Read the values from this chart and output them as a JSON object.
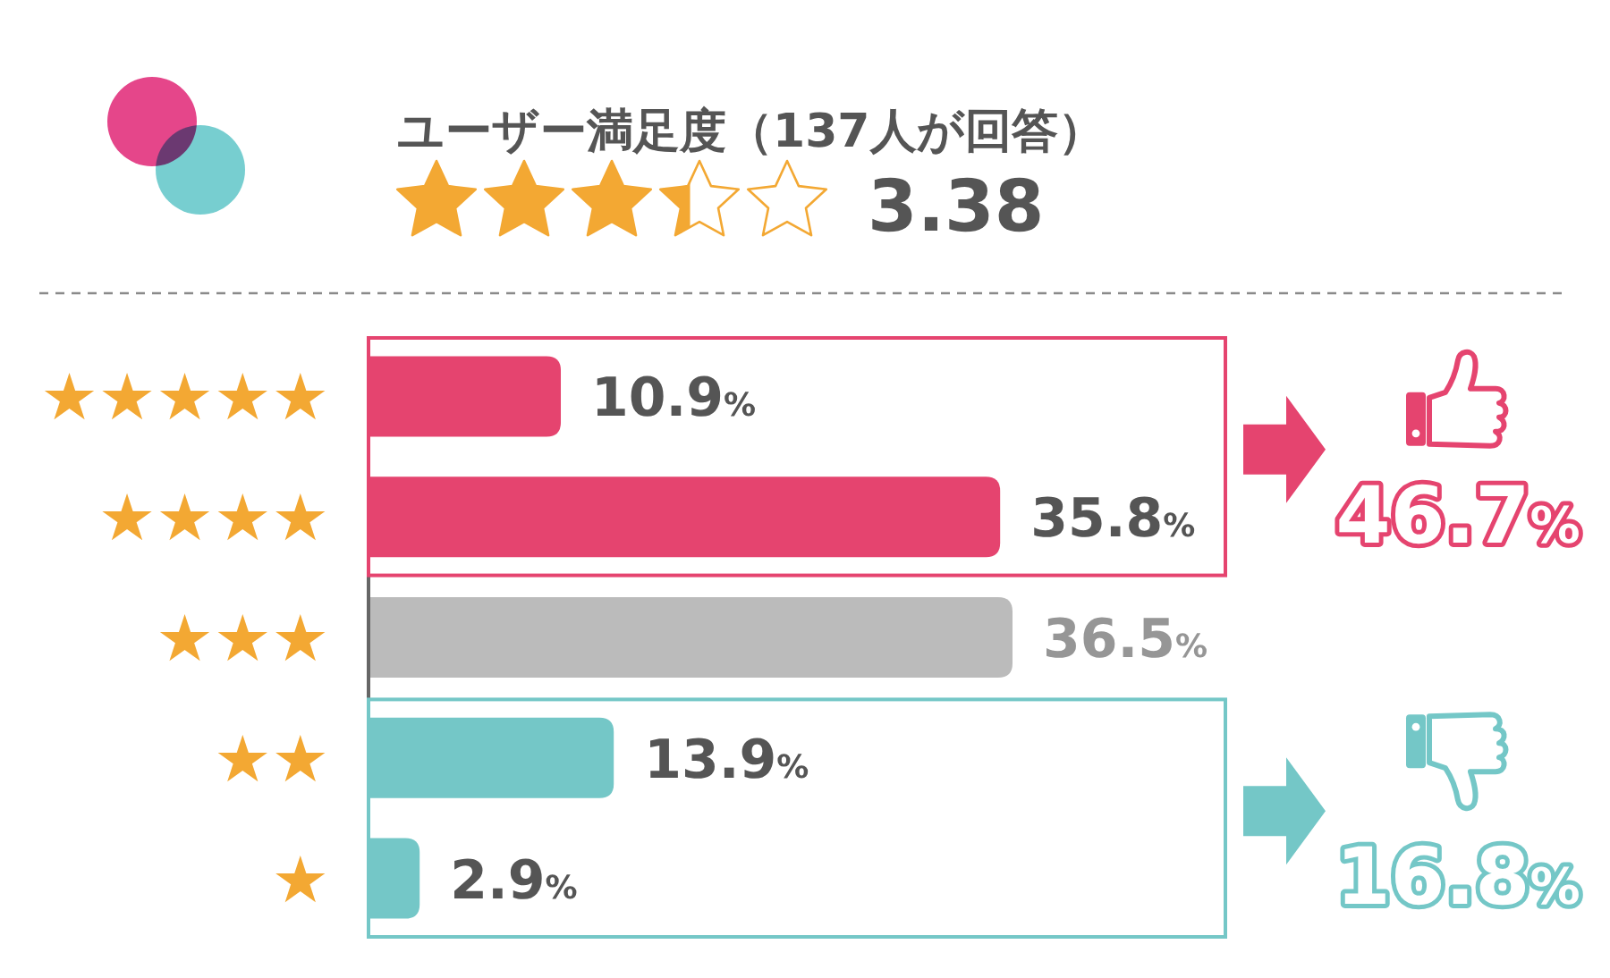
{
  "chart_data": {
    "type": "bar",
    "orientation": "horizontal",
    "title": "ユーザー満足度（137人が回答）",
    "categories": [
      "★★★★★",
      "★★★★",
      "★★★",
      "★★",
      "★"
    ],
    "values": [
      10.9,
      35.8,
      36.5,
      13.9,
      2.9
    ],
    "colors": [
      "#e5446f",
      "#e5446f",
      "#bbbbbb",
      "#74c7c7",
      "#74c7c7"
    ],
    "value_labels": [
      "10.9%",
      "35.8%",
      "36.5%",
      "13.9%",
      "2.9%"
    ],
    "annotations": [
      "3.38",
      "46.7%",
      "16.8%"
    ],
    "tick_labels": "y"
  }
}
